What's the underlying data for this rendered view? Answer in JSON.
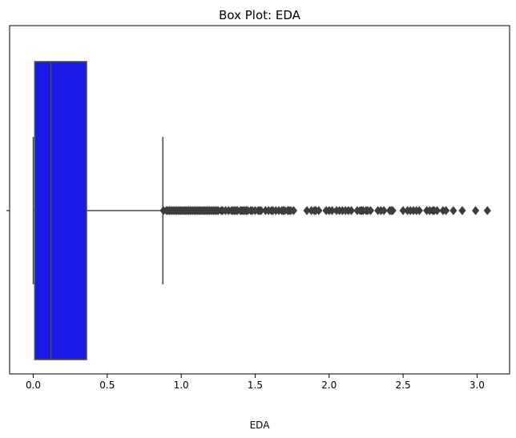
{
  "chart_data": {
    "type": "box",
    "title": "Box Plot: EDA",
    "xlabel": "EDA",
    "ylabel": "",
    "xlim": [
      -0.16,
      3.22
    ],
    "x_ticks": [
      0.0,
      0.5,
      1.0,
      1.5,
      2.0,
      2.5,
      3.0
    ],
    "x_tick_labels": [
      "0.0",
      "0.5",
      "1.0",
      "1.5",
      "2.0",
      "2.5",
      "3.0"
    ],
    "grid": false,
    "box": {
      "whisker_low": 0.0,
      "q1": 0.01,
      "median": 0.12,
      "q3": 0.36,
      "whisker_high": 0.876,
      "fill_color": "#1a1ae6",
      "line_color": "#4d4d4d"
    },
    "outliers": [
      0.88,
      0.9,
      0.91,
      0.92,
      0.93,
      0.94,
      0.95,
      0.96,
      0.97,
      0.98,
      0.99,
      1.0,
      1.01,
      1.02,
      1.03,
      1.04,
      1.05,
      1.06,
      1.07,
      1.08,
      1.09,
      1.1,
      1.11,
      1.12,
      1.13,
      1.14,
      1.15,
      1.16,
      1.17,
      1.18,
      1.19,
      1.2,
      1.21,
      1.22,
      1.23,
      1.24,
      1.25,
      1.27,
      1.28,
      1.3,
      1.32,
      1.34,
      1.35,
      1.36,
      1.37,
      1.38,
      1.4,
      1.41,
      1.42,
      1.43,
      1.44,
      1.45,
      1.47,
      1.48,
      1.5,
      1.52,
      1.53,
      1.54,
      1.57,
      1.59,
      1.61,
      1.62,
      1.64,
      1.66,
      1.68,
      1.69,
      1.7,
      1.72,
      1.73,
      1.74,
      1.76,
      1.85,
      1.88,
      1.9,
      1.91,
      1.93,
      1.98,
      2.0,
      2.02,
      2.05,
      2.07,
      2.09,
      2.11,
      2.13,
      2.15,
      2.19,
      2.21,
      2.22,
      2.23,
      2.25,
      2.26,
      2.28,
      2.33,
      2.35,
      2.37,
      2.41,
      2.42,
      2.43,
      2.5,
      2.53,
      2.55,
      2.57,
      2.59,
      2.61,
      2.66,
      2.68,
      2.7,
      2.71,
      2.73,
      2.77,
      2.79,
      2.84,
      2.9,
      2.99,
      3.07
    ]
  }
}
